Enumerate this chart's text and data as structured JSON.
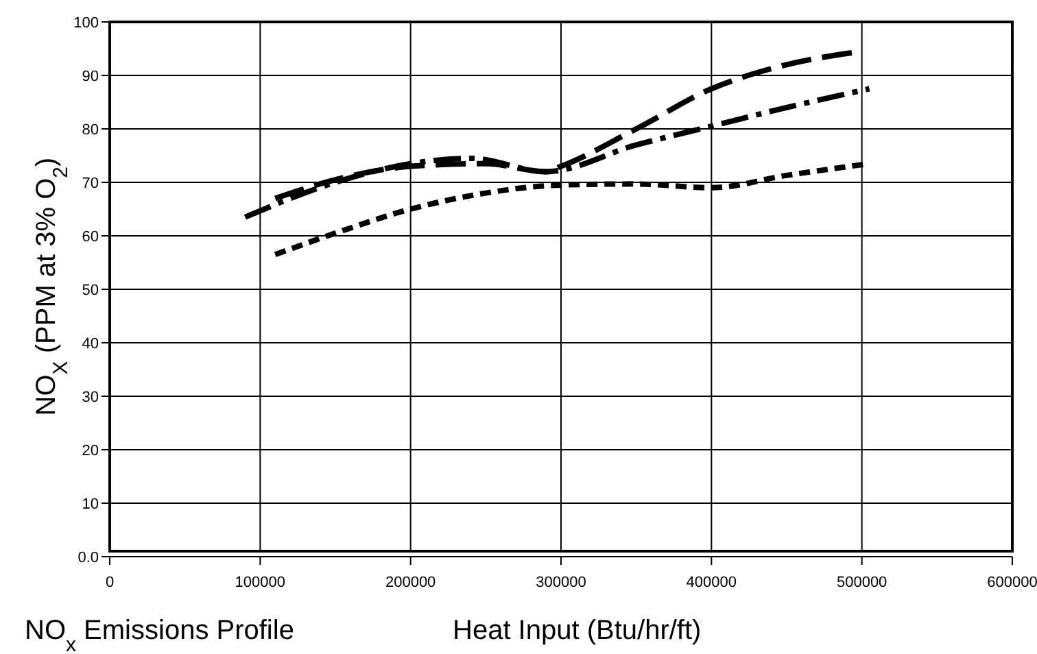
{
  "chart_data": {
    "type": "line",
    "xlabel": "Heat Input (Btu/hr/ft)",
    "ylabel": "NO$_{X}$ (PPM at 3% O$_{2}$)",
    "annotations": [
      "NO$_{x}$ Emissions Profile"
    ],
    "xlim": [
      0,
      600000
    ],
    "xticks": [
      0,
      100000,
      200000,
      300000,
      400000,
      500000,
      600000
    ],
    "ylim": [
      0,
      100
    ],
    "yticks": [
      {
        "value": 0,
        "label": "0.0"
      },
      10,
      20,
      30,
      40,
      50,
      60,
      70,
      80,
      90,
      100
    ],
    "grid": true,
    "marker": "none",
    "series": [
      {
        "color": "#000000",
        "line_style": "dashed",
        "x": [
          110000,
          150000,
          200000,
          250000,
          290000,
          300000,
          350000,
          400000,
          450000,
          500000
        ],
        "values": [
          67,
          70.5,
          73,
          73.5,
          72,
          73,
          80,
          87.5,
          92,
          94.5
        ]
      },
      {
        "color": "#000000",
        "line_style": "dashdot",
        "x": [
          90000,
          150000,
          200000,
          240000,
          290000,
          350000,
          400000,
          450000,
          505000
        ],
        "values": [
          63.5,
          70,
          73.5,
          74.5,
          72,
          77,
          80.5,
          84,
          87.5
        ]
      },
      {
        "color": "#000000",
        "line_style": "dotted",
        "x": [
          110000,
          150000,
          200000,
          250000,
          300000,
          350000,
          400000,
          450000,
          505000
        ],
        "values": [
          56.5,
          60.5,
          65,
          68,
          69.5,
          69.7,
          69,
          71.3,
          73.5
        ]
      }
    ]
  }
}
